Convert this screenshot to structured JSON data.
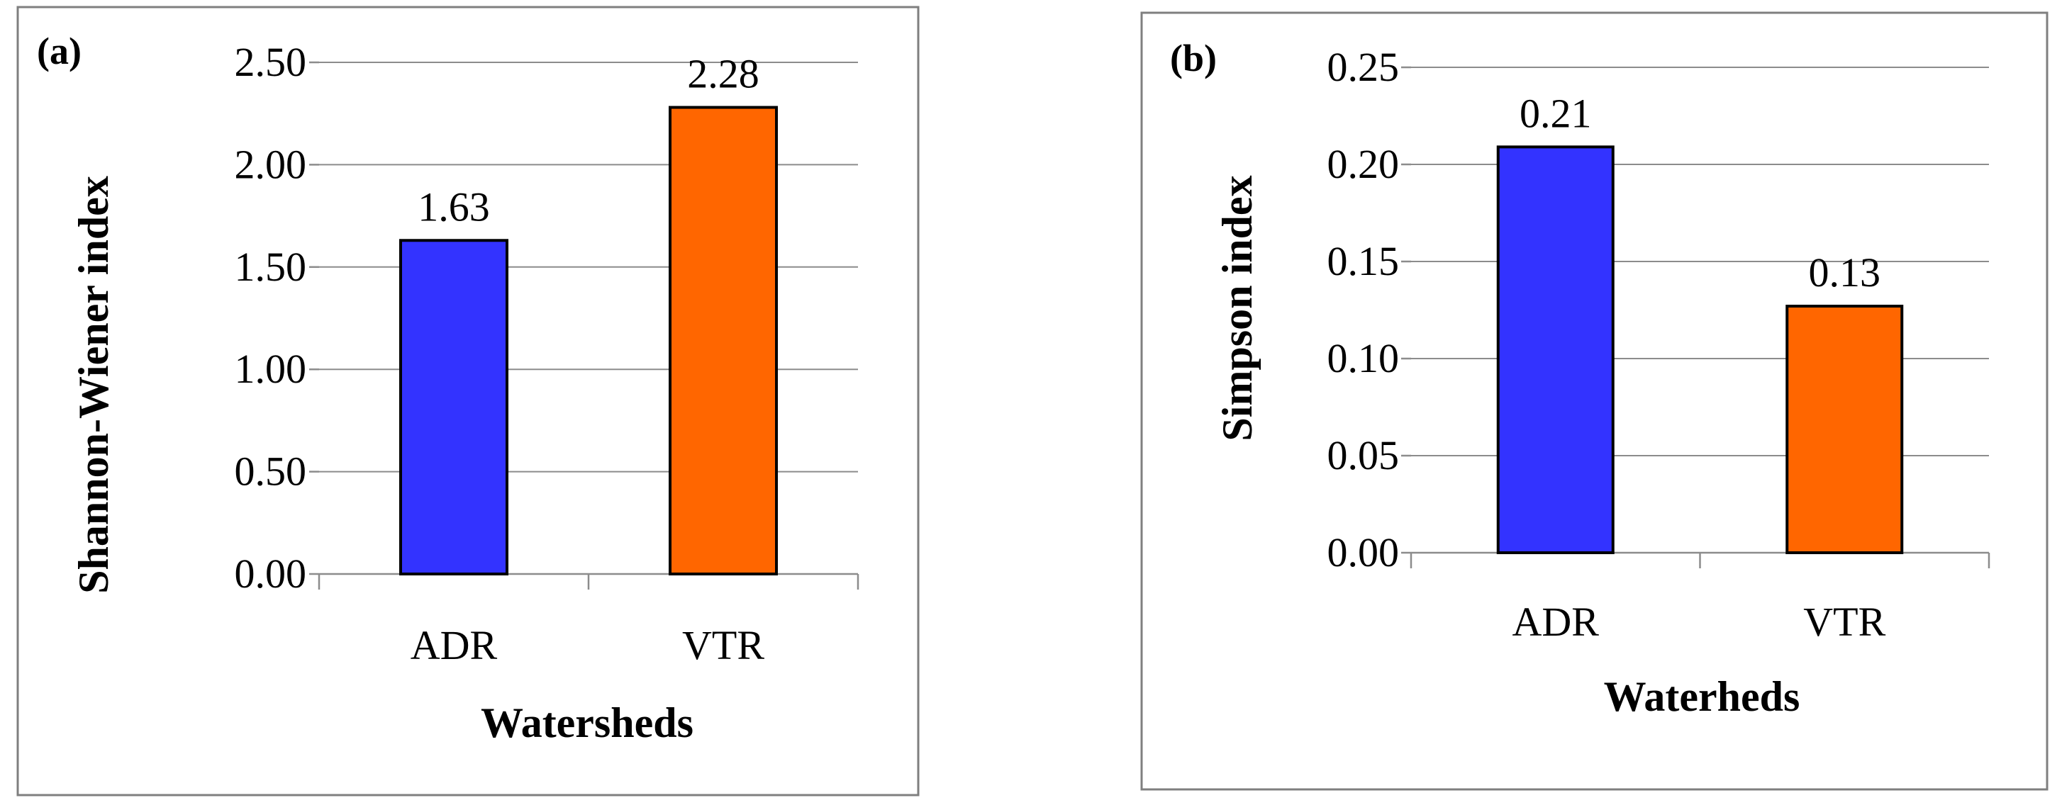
{
  "chart_data": [
    {
      "type": "bar",
      "panel_label": "(a)",
      "categories": [
        "ADR",
        "VTR"
      ],
      "values": [
        1.63,
        2.28
      ],
      "data_labels": [
        "1.63",
        "2.28"
      ],
      "bar_colors": [
        "#3333ff",
        "#ff6600"
      ],
      "xlabel": "Watersheds",
      "ylabel": "Shannon-Wiener index",
      "ylim": [
        0,
        2.5
      ],
      "yticks": [
        "0.00",
        "0.50",
        "1.00",
        "1.50",
        "2.00",
        "2.50"
      ],
      "grid": true,
      "legend": "none"
    },
    {
      "type": "bar",
      "panel_label": "(b)",
      "categories": [
        "ADR",
        "VTR"
      ],
      "values": [
        0.209,
        0.127
      ],
      "data_labels": [
        "0.21",
        "0.13"
      ],
      "bar_colors": [
        "#3333ff",
        "#ff6600"
      ],
      "xlabel": "Waterheds",
      "ylabel": "Simpson index",
      "ylim": [
        0,
        0.25
      ],
      "yticks": [
        "0.00",
        "0.05",
        "0.10",
        "0.15",
        "0.20",
        "0.25"
      ],
      "grid": true,
      "legend": "none"
    }
  ]
}
